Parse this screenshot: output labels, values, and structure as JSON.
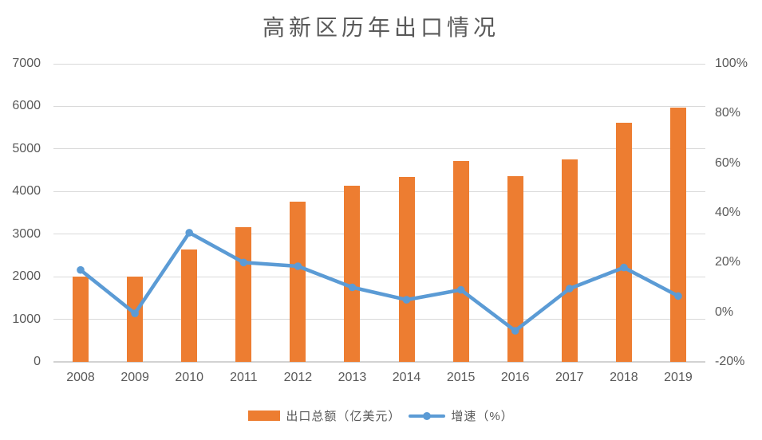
{
  "title": "高新区历年出口情况",
  "colors": {
    "bar": "#ED7D31",
    "line": "#5B9BD5",
    "grid": "#D9D9D9",
    "axis_line": "#D2D2D2",
    "text": "#595959",
    "background": "#FFFFFF"
  },
  "chart_data": {
    "type": "bar",
    "subtype": "combo-bar-line-dual-axis",
    "title": "高新区历年出口情况",
    "categories": [
      "2008",
      "2009",
      "2010",
      "2011",
      "2012",
      "2013",
      "2014",
      "2015",
      "2016",
      "2017",
      "2018",
      "2019"
    ],
    "series": [
      {
        "name": "出口总额（亿美元）",
        "type": "bar",
        "axis": "left",
        "color": "#ED7D31",
        "values": [
          2000,
          2000,
          2630,
          3170,
          3760,
          4130,
          4340,
          4720,
          4370,
          4760,
          5620,
          5980
        ]
      },
      {
        "name": "增速（%）",
        "type": "line",
        "axis": "right",
        "color": "#5B9BD5",
        "marker": "circle",
        "values": [
          17,
          -0.5,
          32,
          20,
          18.5,
          10,
          5,
          9,
          -7.5,
          9.5,
          18,
          6.5
        ]
      }
    ],
    "left_axis": {
      "min": 0,
      "max": 7000,
      "step": 1000,
      "ticks": [
        "0",
        "1000",
        "2000",
        "3000",
        "4000",
        "5000",
        "6000",
        "7000"
      ]
    },
    "right_axis": {
      "min": -20,
      "max": 100,
      "step": 20,
      "ticks": [
        "-20%",
        "0%",
        "20%",
        "40%",
        "60%",
        "80%",
        "100%"
      ]
    },
    "grid": true,
    "legend_position": "bottom"
  },
  "legend": {
    "items": [
      {
        "label": "出口总额（亿美元）",
        "swatch": "bar"
      },
      {
        "label": "增速（%）",
        "swatch": "line"
      }
    ]
  }
}
